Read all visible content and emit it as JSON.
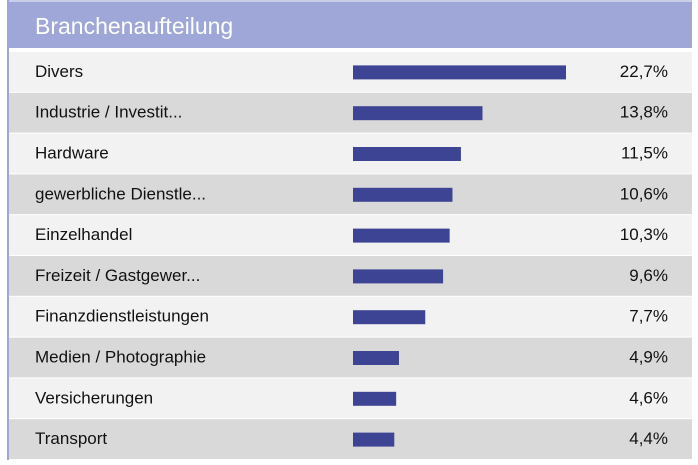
{
  "chart_data": {
    "type": "bar",
    "title": "Branchenaufteilung",
    "categories": [
      "Divers",
      "Industrie / Investit...",
      "Hardware",
      "gewerbliche Dienstle...",
      "Einzelhandel",
      "Freizeit / Gastgewer...",
      "Finanzdienstleistungen",
      "Medien / Photographie",
      "Versicherungen",
      "Transport"
    ],
    "values": [
      22.7,
      13.8,
      11.5,
      10.6,
      10.3,
      9.6,
      7.7,
      4.9,
      4.6,
      4.4
    ],
    "value_labels": [
      "22,7%",
      "13,8%",
      "11,5%",
      "10,6%",
      "10,3%",
      "9,6%",
      "7,7%",
      "4,9%",
      "4,6%",
      "4,4%"
    ],
    "color": "#3d4494"
  }
}
